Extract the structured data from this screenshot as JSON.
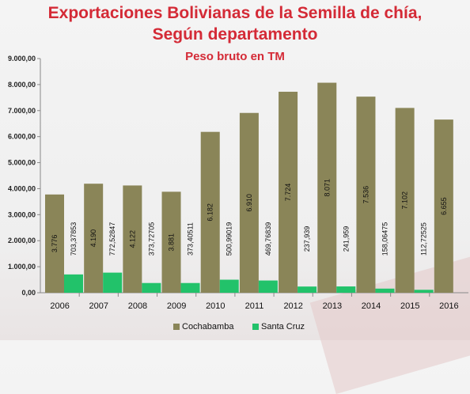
{
  "chart_data": {
    "type": "bar",
    "title": "Exportaciones Bolivianas de la Semilla de chía,",
    "title_line2": "Según departamento",
    "subtitle": "Peso bruto en TM",
    "categories": [
      "2006",
      "2007",
      "2008",
      "2009",
      "2010",
      "2011",
      "2012",
      "2013",
      "2014",
      "2015",
      "2016"
    ],
    "series": [
      {
        "name": "Cochabamba",
        "color": "#8a8558",
        "values": [
          3776,
          4190,
          4122,
          3881,
          6182,
          6910,
          7724,
          8071,
          7536,
          7102,
          6655
        ],
        "labels": [
          "3.776",
          "4.190",
          "4.122",
          "3.881",
          "6.182",
          "6.910",
          "7.724",
          "8.071",
          "7.536",
          "7.102",
          "6.655"
        ]
      },
      {
        "name": "Santa Cruz",
        "color": "#22c26a",
        "values": [
          703.37853,
          772.52847,
          373.72705,
          373.40511,
          500.99019,
          469.76839,
          237.939,
          241.959,
          158.06475,
          112.72525,
          null
        ],
        "labels": [
          "703,37853",
          "772,52847",
          "373,72705",
          "373,40511",
          "500,99019",
          "469,76839",
          "237,939",
          "241,959",
          "158,06475",
          "112,72525",
          ""
        ]
      }
    ],
    "y_ticks": [
      "0,00",
      "1.000,00",
      "2.000,00",
      "3.000,00",
      "4.000,00",
      "5.000,00",
      "6.000,00",
      "7.000,00",
      "8.000,00",
      "9.000,00"
    ],
    "ylim": [
      0,
      9000
    ],
    "xlabel": "",
    "ylabel": "",
    "legend_position": "bottom",
    "grid": false
  }
}
